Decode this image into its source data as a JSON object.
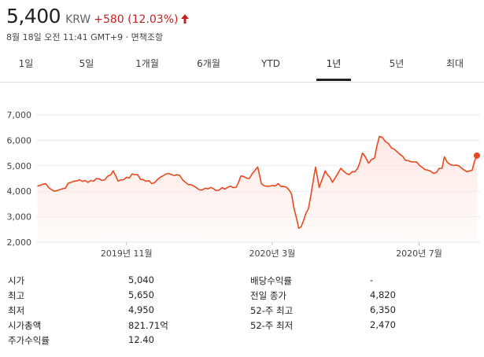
{
  "quote": {
    "price": "5,400",
    "currency": "KRW",
    "change": "+580 (12.03%)",
    "timestamp": "8월 18일 오전 11:41 GMT+9 · 면책조항"
  },
  "colors": {
    "up": "#c5221f",
    "line": "#e8491d",
    "fill": "#fde7e2"
  },
  "tabs": [
    {
      "label": "1일",
      "active": false
    },
    {
      "label": "5일",
      "active": false
    },
    {
      "label": "1개월",
      "active": false
    },
    {
      "label": "6개월",
      "active": false
    },
    {
      "label": "YTD",
      "active": false
    },
    {
      "label": "1년",
      "active": true
    },
    {
      "label": "5년",
      "active": false
    },
    {
      "label": "최대",
      "active": false
    }
  ],
  "chart_data": {
    "type": "area",
    "y_ticks": [
      "7,000",
      "6,000",
      "5,000",
      "4,000",
      "3,000",
      "2,000"
    ],
    "y_tick_values": [
      7000,
      6000,
      5000,
      4000,
      3000,
      2000
    ],
    "ylim": [
      2000,
      7000
    ],
    "x_tick_labels": [
      "2019년 11월",
      "2020년 3월",
      "2020년 7월"
    ],
    "x_tick_values": [
      "2019-11-01",
      "2020-03-01",
      "2020-07-01"
    ],
    "x_range": [
      "2019-08-18",
      "2020-08-18"
    ],
    "grid": true,
    "last_value": 5400,
    "series": [
      {
        "values": [
          [
            "2019-08-19",
            4200
          ],
          [
            "2019-08-26",
            4300
          ],
          [
            "2019-09-02",
            4000
          ],
          [
            "2019-09-09",
            4100
          ],
          [
            "2019-09-16",
            4350
          ],
          [
            "2019-09-23",
            4450
          ],
          [
            "2019-09-30",
            4350
          ],
          [
            "2019-10-07",
            4500
          ],
          [
            "2019-10-14",
            4450
          ],
          [
            "2019-10-21",
            4800
          ],
          [
            "2019-10-25",
            4400
          ],
          [
            "2019-11-01",
            4550
          ],
          [
            "2019-11-08",
            4650
          ],
          [
            "2019-11-15",
            4450
          ],
          [
            "2019-11-22",
            4300
          ],
          [
            "2019-11-29",
            4550
          ],
          [
            "2019-12-06",
            4700
          ],
          [
            "2019-12-13",
            4650
          ],
          [
            "2019-12-20",
            4350
          ],
          [
            "2019-12-27",
            4200
          ],
          [
            "2020-01-03",
            4050
          ],
          [
            "2020-01-10",
            4150
          ],
          [
            "2020-01-17",
            4050
          ],
          [
            "2020-01-24",
            4150
          ],
          [
            "2020-01-31",
            4150
          ],
          [
            "2020-02-04",
            4600
          ],
          [
            "2020-02-11",
            4500
          ],
          [
            "2020-02-18",
            4950
          ],
          [
            "2020-02-21",
            4300
          ],
          [
            "2020-02-28",
            4200
          ],
          [
            "2020-03-06",
            4300
          ],
          [
            "2020-03-13",
            4150
          ],
          [
            "2020-03-17",
            3900
          ],
          [
            "2020-03-19",
            3350
          ],
          [
            "2020-03-23",
            2550
          ],
          [
            "2020-03-25",
            2600
          ],
          [
            "2020-03-27",
            2850
          ],
          [
            "2020-03-31",
            3300
          ],
          [
            "2020-04-06",
            4950
          ],
          [
            "2020-04-09",
            4150
          ],
          [
            "2020-04-14",
            4800
          ],
          [
            "2020-04-20",
            4350
          ],
          [
            "2020-04-27",
            4900
          ],
          [
            "2020-05-04",
            4650
          ],
          [
            "2020-05-11",
            4900
          ],
          [
            "2020-05-15",
            5500
          ],
          [
            "2020-05-20",
            5100
          ],
          [
            "2020-05-25",
            5300
          ],
          [
            "2020-05-29",
            6150
          ],
          [
            "2020-06-03",
            5950
          ],
          [
            "2020-06-08",
            5700
          ],
          [
            "2020-06-15",
            5450
          ],
          [
            "2020-06-22",
            5200
          ],
          [
            "2020-06-29",
            5150
          ],
          [
            "2020-07-06",
            4850
          ],
          [
            "2020-07-13",
            4700
          ],
          [
            "2020-07-20",
            4900
          ],
          [
            "2020-07-22",
            5350
          ],
          [
            "2020-07-27",
            5050
          ],
          [
            "2020-08-03",
            5000
          ],
          [
            "2020-08-07",
            4850
          ],
          [
            "2020-08-12",
            4800
          ],
          [
            "2020-08-14",
            4820
          ],
          [
            "2020-08-18",
            5400
          ]
        ]
      }
    ]
  },
  "stats": {
    "left": [
      {
        "label": "시가",
        "value": "5,040"
      },
      {
        "label": "최고",
        "value": "5,650"
      },
      {
        "label": "최저",
        "value": "4,950"
      },
      {
        "label": "시가총액",
        "value": "821.71억"
      },
      {
        "label": "주가수익률",
        "value": "12.40"
      }
    ],
    "right": [
      {
        "label": "배당수익률",
        "value": "-"
      },
      {
        "label": "전일 종가",
        "value": "4,820"
      },
      {
        "label": "52-주 최고",
        "value": "6,350"
      },
      {
        "label": "52-주 최저",
        "value": "2,470"
      }
    ]
  }
}
